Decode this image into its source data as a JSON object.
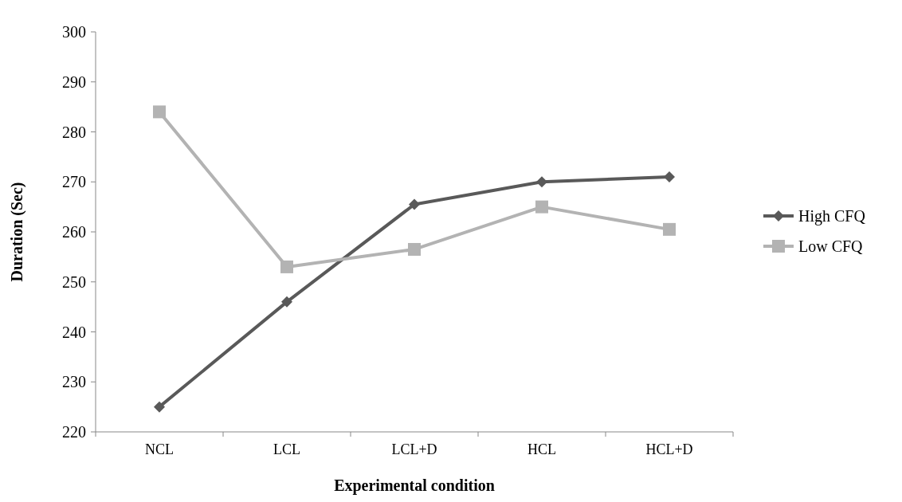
{
  "chart_data": {
    "type": "line",
    "xlabel": "Experimental condition",
    "ylabel": "Duration (Sec)",
    "categories": [
      "NCL",
      "LCL",
      "LCL+D",
      "HCL",
      "HCL+D"
    ],
    "series": [
      {
        "name": "High CFQ",
        "color": "#595959",
        "marker": "diamond",
        "values": [
          225,
          246,
          265.5,
          270,
          271
        ]
      },
      {
        "name": "Low CFQ",
        "color": "#b3b3b3",
        "marker": "square",
        "values": [
          284,
          253,
          256.5,
          265,
          260.5
        ]
      }
    ],
    "ylim": [
      220,
      300
    ],
    "yticks": [
      220,
      230,
      240,
      250,
      260,
      270,
      280,
      290,
      300
    ],
    "grid": false,
    "legend": "right"
  }
}
